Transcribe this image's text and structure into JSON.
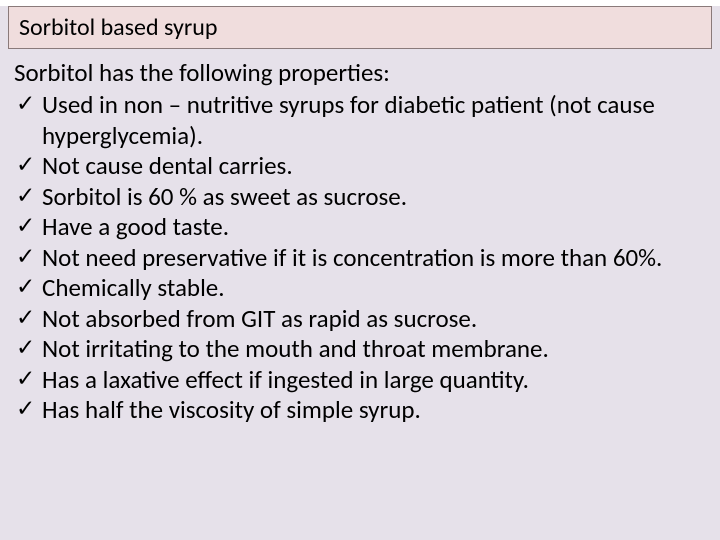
{
  "slide": {
    "title": "Sorbitol based syrup",
    "intro": "Sorbitol has the following properties:",
    "properties": [
      "Used in non – nutritive syrups for diabetic patient (not cause hyperglycemia).",
      "Not cause dental carries.",
      "Sorbitol is 60 % as sweet as sucrose.",
      "Have a good taste.",
      "Not need preservative if it is concentration is more than 60%.",
      "Chemically stable.",
      "Not absorbed from GIT as rapid as sucrose.",
      "Not irritating to the mouth and throat membrane.",
      "Has a laxative effect if ingested in large quantity.",
      "Has half the viscosity of simple syrup."
    ]
  },
  "colors": {
    "slide_background": "#e6e1ea",
    "title_background": "#f0dddd",
    "title_border": "#8a7a7a",
    "text_color": "#000000"
  },
  "typography": {
    "title_fontsize": 24,
    "body_fontsize": 25,
    "font_family": "Calibri"
  }
}
